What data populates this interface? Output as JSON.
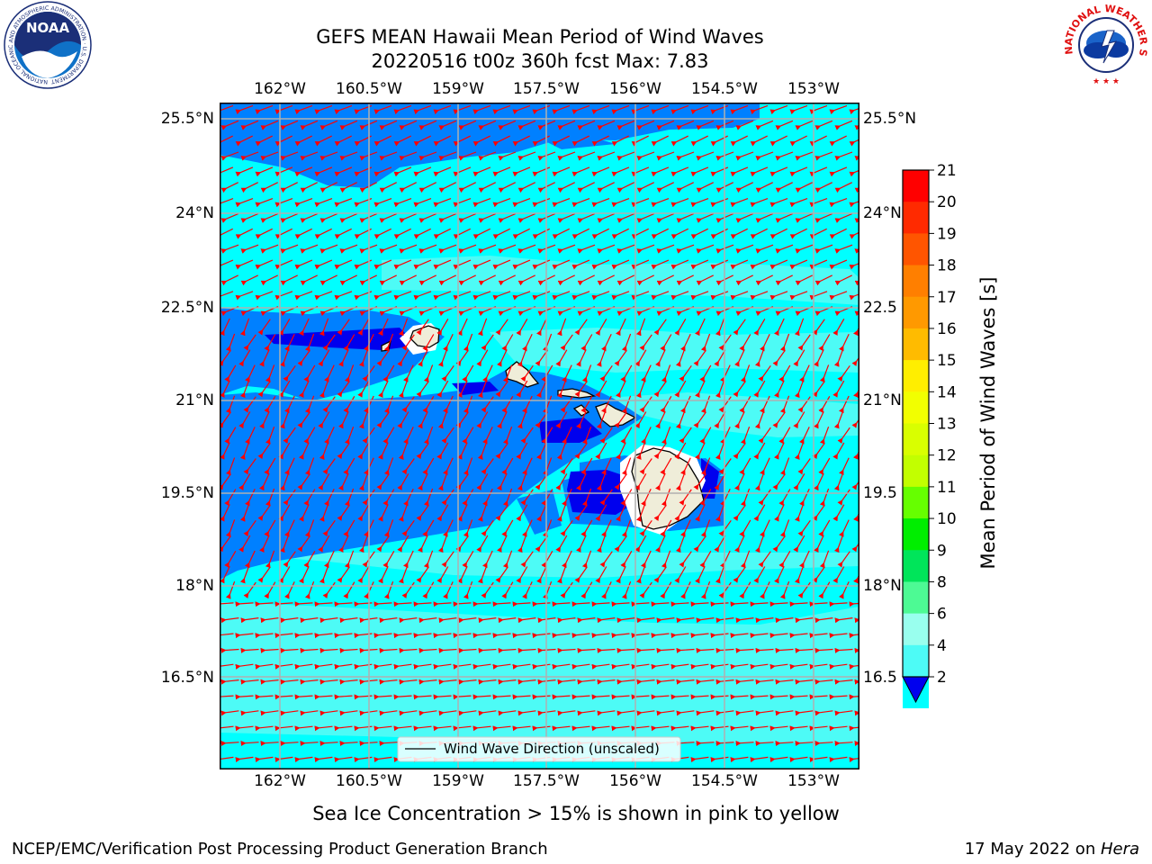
{
  "title": {
    "line1": "GEFS MEAN Hawaii Mean Period of Wind Waves",
    "line2": "20220516 t00z 360h fcst   Max: 7.83"
  },
  "colors": {
    "fill_2_4": "#0080ff",
    "fill_4_6": "#00ffff",
    "fill_6_8": "#4dfbf6",
    "fill_lt2": "#0000ee",
    "land": "#efedd9",
    "arrows": "#ff0000",
    "grid": "#b0b0b0"
  },
  "map": {
    "lon_ticks": [
      "162°W",
      "160.5°W",
      "159°W",
      "157.5°W",
      "156°W",
      "154.5°W",
      "153°W"
    ],
    "lat_ticks": [
      "25.5°N",
      "24°N",
      "22.5°N",
      "21°N",
      "19.5°N",
      "18°N",
      "16.5°N"
    ],
    "lat_ticks_right": [
      "25.5°N",
      "24°N",
      "22.5",
      "21°N",
      "19.5",
      "18°N",
      "16.5"
    ],
    "legend_label": "Wind Wave Direction (unscaled)"
  },
  "colorbar": {
    "label": "Mean Period of Wind Waves [s]",
    "levels": [
      "21",
      "20",
      "19",
      "18",
      "17",
      "16",
      "15",
      "14",
      "13",
      "12",
      "11",
      "10",
      "9",
      "8",
      "6",
      "4",
      "2"
    ],
    "colors": [
      "#ff0000",
      "#ff2a00",
      "#ff5500",
      "#ff7f00",
      "#ff9900",
      "#ffbb00",
      "#ffee00",
      "#f2ff00",
      "#d9ff00",
      "#c2ff00",
      "#66ff00",
      "#00ee00",
      "#00e55a",
      "#4dfa94",
      "#99ffee",
      "#4dfbf6",
      "#00ffff",
      "#0080ff"
    ],
    "underflow_color": "#0000ee"
  },
  "footer": {
    "sea_ice_note": "Sea Ice Concentration > 15% is shown in pink to yellow",
    "credit_left": "NCEP/EMC/Verification Post Processing Product Generation Branch",
    "credit_date": "17 May 2022 on ",
    "credit_system": "Hera"
  },
  "logos": {
    "noaa_text": "NOAA",
    "noaa_ring": "NATIONAL OCEANIC AND ATMOSPHERIC ADMINISTRATION · U.S. DEPARTMENT OF COMMERCE",
    "nws_ring": "NATIONAL WEATHER SERVICE"
  }
}
